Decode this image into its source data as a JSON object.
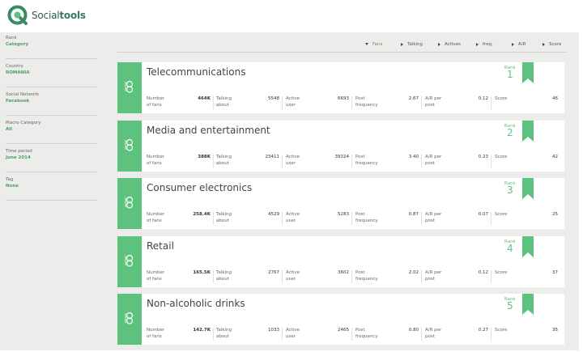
{
  "brand": {
    "name_light": "Social",
    "name_bold": "tools",
    "color": "#3a7a5c"
  },
  "accent": "#5cc27e",
  "filters": [
    {
      "label": "Rank",
      "value": "Category"
    },
    {
      "label": "Country",
      "value": "ROMANIA"
    },
    {
      "label": "Social Network",
      "value": "Facebook"
    },
    {
      "label": "Macro Category",
      "value": "All"
    },
    {
      "label": "Time period",
      "value": "June 2014"
    },
    {
      "label": "Tag",
      "value": "None"
    }
  ],
  "sort_options": [
    {
      "label": "Fans",
      "active": true
    },
    {
      "label": "Talking",
      "active": false
    },
    {
      "label": "Actives",
      "active": false
    },
    {
      "label": "freq.",
      "active": false
    },
    {
      "label": "A/R",
      "active": false
    },
    {
      "label": "Score",
      "active": false
    }
  ],
  "metric_labels": {
    "fans": [
      "Number",
      "of fans"
    ],
    "talking": [
      "Talking",
      "about"
    ],
    "active": [
      "Active",
      "user"
    ],
    "freq": [
      "Post",
      "frequency"
    ],
    "ar": [
      "A/R per",
      "post"
    ],
    "score": [
      "Score",
      ""
    ]
  },
  "rank_label": "Rank",
  "categories": [
    {
      "title": "Telecommunications",
      "rank": "1",
      "fans": "464K",
      "talking": "5548",
      "active": "6693",
      "freq": "2.67",
      "ar": "0.12",
      "score": "46"
    },
    {
      "title": "Media and entertainment",
      "rank": "2",
      "fans": "388K",
      "talking": "23411",
      "active": "39324",
      "freq": "3.40",
      "ar": "0.23",
      "score": "42"
    },
    {
      "title": "Consumer electronics",
      "rank": "3",
      "fans": "258.4K",
      "talking": "4529",
      "active": "5283",
      "freq": "0.87",
      "ar": "0.07",
      "score": "25"
    },
    {
      "title": "Retail",
      "rank": "4",
      "fans": "165.5K",
      "talking": "2767",
      "active": "3602",
      "freq": "2.02",
      "ar": "0.12",
      "score": "37"
    },
    {
      "title": "Non-alcoholic drinks",
      "rank": "5",
      "fans": "142.7K",
      "talking": "1033",
      "active": "2465",
      "freq": "0.80",
      "ar": "0.27",
      "score": "35"
    }
  ]
}
